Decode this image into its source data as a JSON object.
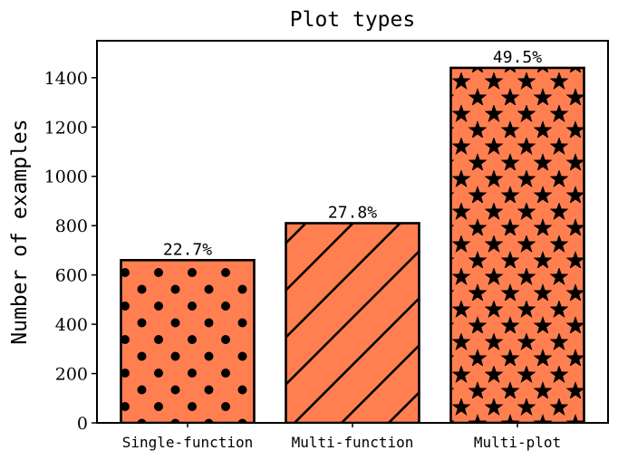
{
  "chart_data": {
    "type": "bar",
    "title": "Plot types",
    "xlabel": "",
    "ylabel": "Number of examples",
    "categories": [
      "Single-function",
      "Multi-function",
      "Multi-plot"
    ],
    "values": [
      660,
      810,
      1440
    ],
    "data_labels": [
      "22.7%",
      "27.8%",
      "49.5%"
    ],
    "hatches": [
      "dots",
      "diagonal-lines",
      "stars"
    ],
    "ylim": [
      0,
      1550
    ],
    "yticks": [
      0,
      200,
      400,
      600,
      800,
      1000,
      1200,
      1400
    ],
    "grid": false,
    "bar_color": "#ff7f50",
    "edge_color": "#000000"
  }
}
